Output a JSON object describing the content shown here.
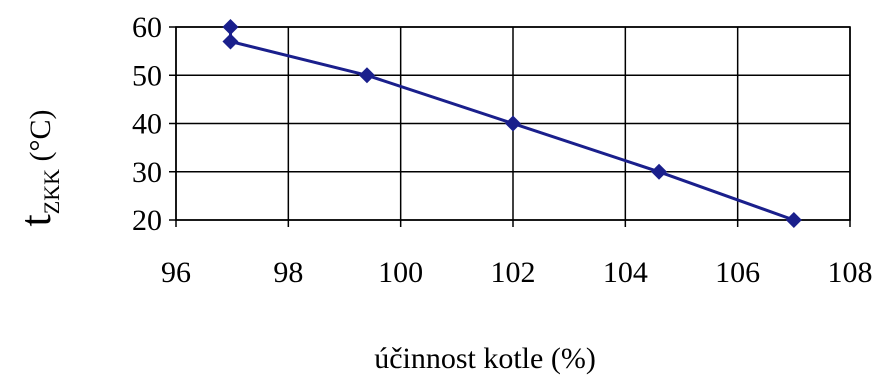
{
  "chart_data": {
    "type": "line",
    "xlabel": "účinnost kotle (%)",
    "ylabel_main": "t",
    "ylabel_sub": "ZKK",
    "ylabel_unit": " (°C)",
    "xlim": [
      96,
      108
    ],
    "ylim": [
      20,
      60
    ],
    "x_ticks": [
      96,
      98,
      100,
      102,
      104,
      106,
      108
    ],
    "y_ticks": [
      20,
      30,
      40,
      50,
      60
    ],
    "grid": true,
    "series": [
      {
        "color": "#1a1f8c",
        "points": [
          {
            "x": 96.97,
            "y": 60
          },
          {
            "x": 96.97,
            "y": 57
          },
          {
            "x": 99.4,
            "y": 50
          },
          {
            "x": 102.0,
            "y": 40
          },
          {
            "x": 104.6,
            "y": 30
          },
          {
            "x": 107.0,
            "y": 20
          }
        ]
      }
    ]
  }
}
